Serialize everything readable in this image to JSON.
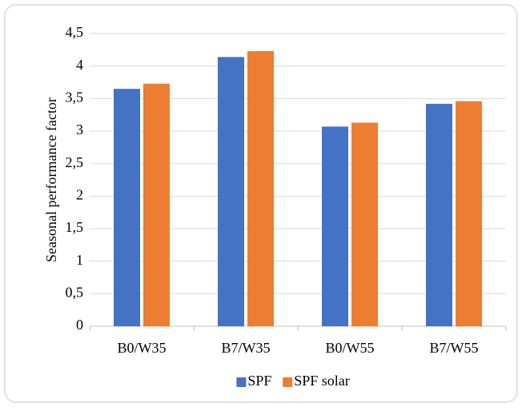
{
  "chart_data": {
    "type": "bar",
    "y_label": "Seasonal performance factor",
    "categories": [
      "B0/W35",
      "B7/W35",
      "B0/W55",
      "B7/W55"
    ],
    "series": [
      {
        "name": "SPF",
        "color": "#4472c4",
        "values": [
          3.65,
          4.14,
          3.07,
          3.42
        ]
      },
      {
        "name": "SPF solar",
        "color": "#ed7d31",
        "values": [
          3.73,
          4.23,
          3.13,
          3.46
        ]
      }
    ],
    "ylim": [
      0,
      4.5
    ],
    "yticks": [
      0,
      {
        "value": 0.5,
        "label": "0,5"
      },
      1,
      {
        "value": 1.5,
        "label": "1,5"
      },
      2,
      {
        "value": 2.5,
        "label": "2,5"
      },
      3,
      {
        "value": 3.5,
        "label": "3,5"
      },
      4,
      {
        "value": 4.5,
        "label": "4,5"
      }
    ],
    "grid": true,
    "legend": "bottom"
  }
}
